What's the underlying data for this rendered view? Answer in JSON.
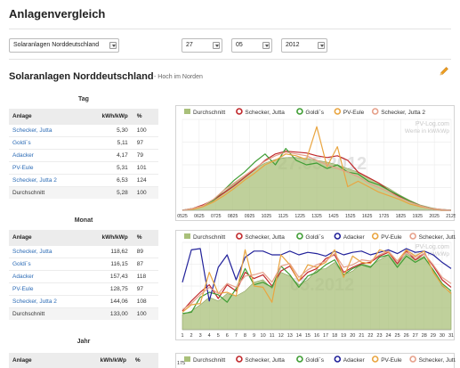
{
  "page": {
    "title": "Anlagenvergleich"
  },
  "controls": {
    "region": "Solaranlagen Norddeutschland",
    "day": "27",
    "month": "05",
    "year": "2012"
  },
  "section": {
    "title": "Solaranlagen Norddeutschland",
    "subtitle": "- Hoch im Norden"
  },
  "tables": {
    "headers": {
      "plant": "Anlage",
      "value": "kWh/kWp",
      "pct": "%"
    },
    "tag": {
      "heading": "Tag",
      "rows": [
        {
          "name": "Schecker, Jutta",
          "value": "5,30",
          "pct": "100"
        },
        {
          "name": "Goldi´s",
          "value": "5,11",
          "pct": "97"
        },
        {
          "name": "Adacker",
          "value": "4,17",
          "pct": "79"
        },
        {
          "name": "PV-Eule",
          "value": "5,31",
          "pct": "101"
        },
        {
          "name": "Schecker, Jutta 2",
          "value": "6,53",
          "pct": "124"
        }
      ],
      "average": {
        "name": "Durchschnitt",
        "value": "5,28",
        "pct": "100"
      }
    },
    "monat": {
      "heading": "Monat",
      "rows": [
        {
          "name": "Schecker, Jutta",
          "value": "118,62",
          "pct": "89"
        },
        {
          "name": "Goldi´s",
          "value": "116,15",
          "pct": "87"
        },
        {
          "name": "Adacker",
          "value": "157,43",
          "pct": "118"
        },
        {
          "name": "PV-Eule",
          "value": "128,75",
          "pct": "97"
        },
        {
          "name": "Schecker, Jutta 2",
          "value": "144,06",
          "pct": "108"
        }
      ],
      "average": {
        "name": "Durchschnitt",
        "value": "133,00",
        "pct": "100"
      }
    },
    "jahr": {
      "heading": "Jahr"
    }
  },
  "colors": {
    "durchschnitt": "#a9c07a",
    "schecker": "#c0282b",
    "goldis": "#3f9d34",
    "adacker": "#22229a",
    "pveule": "#e9a540",
    "schecker2": "#e6a08a"
  },
  "charts": {
    "watermark_brand": "PV-Log.com",
    "watermark_unit": "Werte in kW/kWp",
    "day_chart": {
      "watermark_date": "27.05.2012",
      "legend": [
        "Durchschnitt",
        "Schecker, Jutta",
        "Goldi´s",
        "PV-Eule",
        "Schecker, Jutta 2"
      ],
      "x_ticks": [
        "0525",
        "0625",
        "0725",
        "0825",
        "0925",
        "1025",
        "1125",
        "1225",
        "1325",
        "1425",
        "1525",
        "1625",
        "1725",
        "1825",
        "1925",
        "2025",
        "2125"
      ]
    },
    "month_chart": {
      "watermark_date": "05.2012",
      "legend": [
        "Durchschnitt",
        "Schecker, Jutta",
        "Goldi´s",
        "Adacker",
        "PV-Eule",
        "Schecker, Jutta 2"
      ],
      "x_ticks": [
        "1",
        "2",
        "3",
        "4",
        "5",
        "6",
        "7",
        "8",
        "9",
        "10",
        "11",
        "12",
        "13",
        "14",
        "15",
        "16",
        "17",
        "18",
        "19",
        "20",
        "21",
        "22",
        "23",
        "24",
        "25",
        "26",
        "27",
        "28",
        "29",
        "30",
        "31"
      ]
    },
    "year_chart": {
      "legend": [
        "Durchschnitt",
        "Schecker, Jutta",
        "Goldi´s",
        "Adacker",
        "PV-Eule",
        "Schecker, Jutta 2"
      ],
      "y_tick": "175"
    }
  },
  "chart_data": [
    {
      "type": "line",
      "x_unit": "time of day (hours)",
      "x": [
        5.4,
        6,
        6.6,
        7.2,
        7.8,
        8.4,
        9,
        9.6,
        10.2,
        10.8,
        11.4,
        12,
        12.6,
        13.2,
        13.8,
        14.4,
        15,
        15.6,
        16.2,
        16.8,
        17.4,
        18,
        18.6,
        19.2,
        19.8,
        20.4,
        21
      ],
      "series": [
        {
          "name": "Durchschnitt",
          "values": [
            0,
            0.02,
            0.06,
            0.12,
            0.2,
            0.29,
            0.38,
            0.46,
            0.52,
            0.56,
            0.58,
            0.58,
            0.57,
            0.55,
            0.53,
            0.5,
            0.46,
            0.42,
            0.36,
            0.3,
            0.24,
            0.17,
            0.11,
            0.06,
            0.03,
            0.01,
            0
          ]
        },
        {
          "name": "Schecker, Jutta",
          "values": [
            0,
            0.02,
            0.06,
            0.11,
            0.19,
            0.27,
            0.36,
            0.45,
            0.55,
            0.62,
            0.65,
            0.64,
            0.63,
            0.6,
            0.58,
            0.6,
            0.55,
            0.42,
            0.36,
            0.3,
            0.22,
            0.15,
            0.1,
            0.05,
            0.02,
            0,
            0
          ]
        },
        {
          "name": "Goldi´s",
          "values": [
            0,
            0.02,
            0.05,
            0.11,
            0.22,
            0.33,
            0.42,
            0.53,
            0.62,
            0.5,
            0.68,
            0.55,
            0.5,
            0.52,
            0.46,
            0.5,
            0.42,
            0.4,
            0.32,
            0.28,
            0.22,
            0.16,
            0.1,
            0.05,
            0.02,
            0.01,
            0
          ]
        },
        {
          "name": "PV-Eule",
          "values": [
            0,
            0.01,
            0.04,
            0.09,
            0.16,
            0.24,
            0.33,
            0.41,
            0.5,
            0.55,
            0.62,
            0.6,
            0.56,
            0.92,
            0.48,
            0.7,
            0.26,
            0.32,
            0.26,
            0.2,
            0.16,
            0.12,
            0.07,
            0.04,
            0.02,
            0,
            0
          ]
        },
        {
          "name": "Schecker, Jutta 2",
          "values": [
            0,
            0.02,
            0.05,
            0.12,
            0.22,
            0.3,
            0.38,
            0.46,
            0.54,
            0.6,
            0.64,
            0.62,
            0.6,
            0.55,
            0.5,
            0.46,
            0.42,
            0.37,
            0.3,
            0.25,
            0.2,
            0.14,
            0.09,
            0.05,
            0.02,
            0.01,
            0
          ]
        }
      ]
    },
    {
      "type": "line",
      "categories": [
        "1",
        "2",
        "3",
        "4",
        "5",
        "6",
        "7",
        "8",
        "9",
        "10",
        "11",
        "12",
        "13",
        "14",
        "15",
        "16",
        "17",
        "18",
        "19",
        "20",
        "21",
        "22",
        "23",
        "24",
        "25",
        "26",
        "27",
        "28",
        "29",
        "30",
        "31"
      ],
      "series": [
        {
          "name": "Durchschnitt",
          "values": [
            1.2,
            1.5,
            2.0,
            2.6,
            2.3,
            2.9,
            2.7,
            3.1,
            3.8,
            4.0,
            3.3,
            4.6,
            4.3,
            3.6,
            4.0,
            4.8,
            4.9,
            5.4,
            4.4,
            4.7,
            5.3,
            5.1,
            5.6,
            6.0,
            5.2,
            6.1,
            5.6,
            5.9,
            4.7,
            3.5,
            3.0
          ]
        },
        {
          "name": "Schecker, Jutta",
          "values": [
            1.5,
            2.3,
            3.0,
            3.6,
            2.5,
            3.6,
            3.1,
            4.6,
            4.1,
            4.4,
            3.5,
            4.7,
            5.1,
            3.9,
            4.6,
            4.9,
            5.7,
            6.0,
            4.6,
            5.0,
            5.3,
            5.4,
            5.9,
            6.2,
            5.3,
            6.3,
            5.6,
            6.1,
            5.1,
            4.0,
            3.4
          ]
        },
        {
          "name": "Goldi´s",
          "values": [
            1.3,
            1.4,
            2.6,
            3.0,
            2.8,
            2.2,
            3.3,
            4.9,
            3.6,
            3.8,
            3.4,
            5.1,
            4.4,
            3.4,
            4.3,
            4.6,
            5.2,
            5.6,
            4.4,
            4.9,
            5.2,
            5.0,
            5.8,
            6.0,
            5.0,
            5.9,
            5.4,
            5.8,
            4.8,
            3.7,
            3.1
          ]
        },
        {
          "name": "Adacker",
          "values": [
            3.8,
            6.4,
            6.5,
            2.3,
            5.0,
            6.0,
            4.0,
            5.8,
            6.3,
            6.3,
            6.0,
            6.0,
            6.3,
            6.0,
            6.2,
            6.1,
            5.9,
            6.3,
            6.0,
            6.2,
            6.3,
            6.0,
            6.2,
            6.4,
            6.1,
            6.5,
            6.2,
            6.3,
            6.0,
            5.4,
            4.9
          ]
        },
        {
          "name": "PV-Eule",
          "values": [
            1.4,
            2.0,
            2.1,
            4.6,
            2.9,
            3.0,
            2.7,
            6.4,
            3.5,
            3.4,
            2.2,
            6.0,
            5.2,
            3.9,
            5.2,
            5.0,
            5.4,
            6.4,
            4.2,
            5.9,
            5.4,
            5.3,
            6.4,
            6.2,
            5.5,
            6.4,
            5.9,
            6.3,
            4.6,
            3.6,
            2.9
          ]
        },
        {
          "name": "Schecker, Jutta 2",
          "values": [
            1.6,
            2.1,
            2.8,
            3.4,
            2.9,
            3.7,
            3.4,
            4.3,
            4.4,
            4.6,
            3.8,
            5.1,
            5.3,
            4.2,
            4.8,
            5.2,
            5.5,
            6.1,
            5.0,
            5.2,
            5.6,
            5.5,
            6.0,
            6.3,
            5.5,
            6.2,
            5.8,
            6.1,
            5.2,
            4.2,
            3.7
          ]
        }
      ]
    }
  ]
}
